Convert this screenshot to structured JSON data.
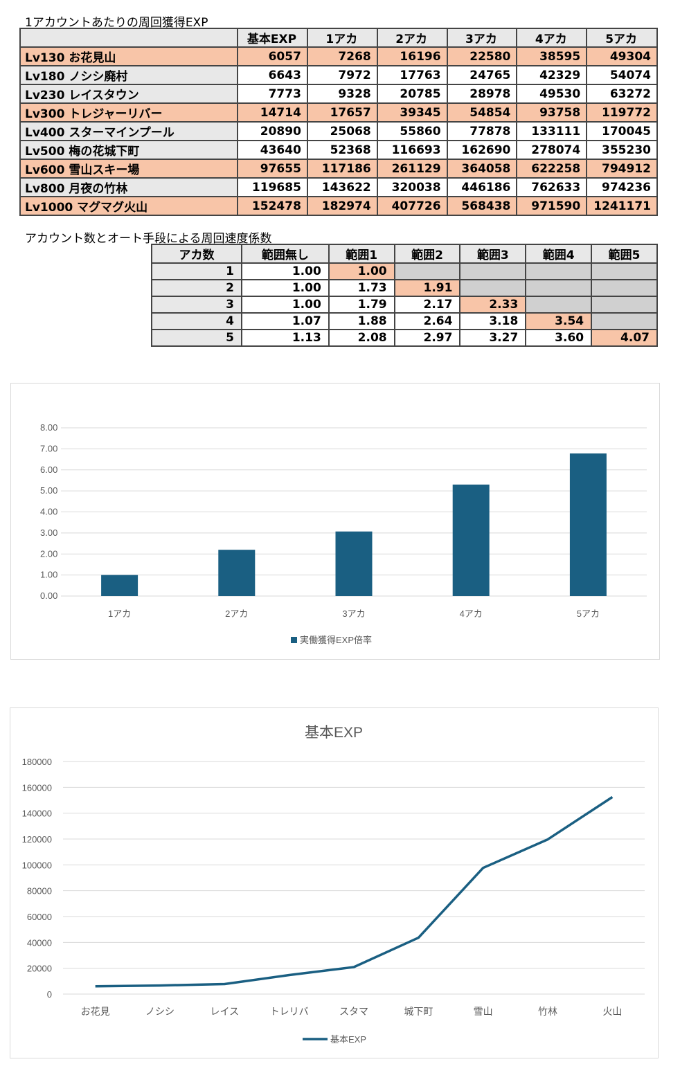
{
  "exp_table": {
    "title": "1アカウントあたりの周回獲得EXP",
    "headers": [
      "基本EXP",
      "1アカ",
      "2アカ",
      "3アカ",
      "4アカ",
      "5アカ"
    ],
    "rows": [
      {
        "label": "Lv130 お花見山",
        "values": [
          "6057",
          "7268",
          "16196",
          "22580",
          "38595",
          "49304"
        ],
        "highlight": true
      },
      {
        "label": "Lv180 ノシシ廃村",
        "values": [
          "6643",
          "7972",
          "17763",
          "24765",
          "42329",
          "54074"
        ],
        "highlight": false
      },
      {
        "label": "Lv230 レイスタウン",
        "values": [
          "7773",
          "9328",
          "20785",
          "28978",
          "49530",
          "63272"
        ],
        "highlight": false
      },
      {
        "label": "Lv300 トレジャーリバー",
        "values": [
          "14714",
          "17657",
          "39345",
          "54854",
          "93758",
          "119772"
        ],
        "highlight": true
      },
      {
        "label": "Lv400 スターマインプール",
        "values": [
          "20890",
          "25068",
          "55860",
          "77878",
          "133111",
          "170045"
        ],
        "highlight": false
      },
      {
        "label": "Lv500 梅の花城下町",
        "values": [
          "43640",
          "52368",
          "116693",
          "162690",
          "278074",
          "355230"
        ],
        "highlight": false
      },
      {
        "label": "Lv600 雪山スキー場",
        "values": [
          "97655",
          "117186",
          "261129",
          "364058",
          "622258",
          "794912"
        ],
        "highlight": true
      },
      {
        "label": "Lv800 月夜の竹林",
        "values": [
          "119685",
          "143622",
          "320038",
          "446186",
          "762633",
          "974236"
        ],
        "highlight": false
      },
      {
        "label": "Lv1000 マグマグ火山",
        "values": [
          "152478",
          "182974",
          "407726",
          "568438",
          "971590",
          "1241171"
        ],
        "highlight": true
      }
    ]
  },
  "speed_table": {
    "title": "アカウント数とオート手段による周回速度係数",
    "headers": [
      "アカ数",
      "範囲無し",
      "範囲1",
      "範囲2",
      "範囲3",
      "範囲4",
      "範囲5"
    ],
    "rows": [
      {
        "label": "1",
        "values": [
          "1.00",
          "1.00",
          "",
          "",
          "",
          ""
        ],
        "cells": [
          "n",
          "h",
          "g",
          "g",
          "g",
          "g"
        ]
      },
      {
        "label": "2",
        "values": [
          "1.00",
          "1.73",
          "1.91",
          "",
          "",
          ""
        ],
        "cells": [
          "n",
          "n",
          "h",
          "g",
          "g",
          "g"
        ]
      },
      {
        "label": "3",
        "values": [
          "1.00",
          "1.79",
          "2.17",
          "2.33",
          "",
          ""
        ],
        "cells": [
          "n",
          "n",
          "n",
          "h",
          "g",
          "g"
        ]
      },
      {
        "label": "4",
        "values": [
          "1.07",
          "1.88",
          "2.64",
          "3.18",
          "3.54",
          ""
        ],
        "cells": [
          "n",
          "n",
          "n",
          "n",
          "h",
          "g"
        ]
      },
      {
        "label": "5",
        "values": [
          "1.13",
          "2.08",
          "2.97",
          "3.27",
          "3.60",
          "4.07"
        ],
        "cells": [
          "n",
          "n",
          "n",
          "n",
          "n",
          "h"
        ]
      }
    ]
  },
  "colors": {
    "highlight": "#f8c5a8",
    "header_bg": "#e8e8e8",
    "inactive_cell": "#d0d0d0",
    "series": "#1a5f82"
  },
  "chart_data": [
    {
      "type": "bar",
      "title": "",
      "categories": [
        "1アカ",
        "2アカ",
        "3アカ",
        "4アカ",
        "5アカ"
      ],
      "series": [
        {
          "name": "実働獲得EXP倍率",
          "values": [
            1.0,
            2.2,
            3.07,
            5.3,
            6.78
          ]
        }
      ],
      "ylim": [
        0,
        8
      ],
      "yticks": [
        "0.00",
        "1.00",
        "2.00",
        "3.00",
        "4.00",
        "5.00",
        "6.00",
        "7.00",
        "8.00"
      ],
      "grid": true,
      "legend": "bottom"
    },
    {
      "type": "line",
      "title": "基本EXP",
      "categories": [
        "お花見",
        "ノシシ",
        "レイス",
        "トレリバ",
        "スタマ",
        "城下町",
        "雪山",
        "竹林",
        "火山"
      ],
      "series": [
        {
          "name": "基本EXP",
          "values": [
            6057,
            6643,
            7773,
            14714,
            20890,
            43640,
            97655,
            119685,
            152478
          ]
        }
      ],
      "ylim": [
        0,
        180000
      ],
      "yticks": [
        "0",
        "20000",
        "40000",
        "60000",
        "80000",
        "100000",
        "120000",
        "140000",
        "160000",
        "180000"
      ],
      "grid": true,
      "legend": "bottom"
    }
  ]
}
